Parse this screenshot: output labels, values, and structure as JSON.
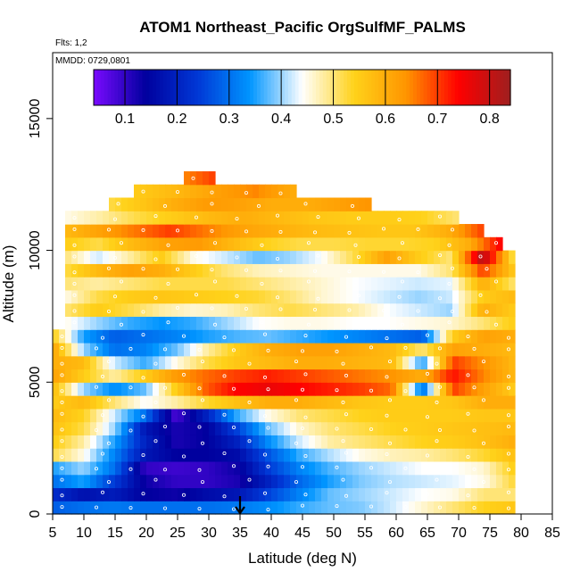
{
  "chart_data": {
    "type": "heatmap",
    "title": "ATOM1 Northeast_Pacific OrgSulfMF_PALMS",
    "flights_note": "Flts: 1,2",
    "date_note": "MMDD: 0729,0801",
    "xlabel": "Latitude (deg N)",
    "ylabel": "Altitude (m)",
    "xlim": [
      5,
      85
    ],
    "ylim": [
      0,
      17500
    ],
    "x_ticks": [
      5,
      10,
      15,
      20,
      25,
      30,
      35,
      40,
      45,
      50,
      55,
      60,
      65,
      70,
      75,
      80,
      85
    ],
    "y_ticks": [
      0,
      5000,
      10000,
      15000
    ],
    "colorbar": {
      "range": [
        0.04,
        0.84
      ],
      "ticks": [
        0.1,
        0.2,
        0.3,
        0.4,
        0.5,
        0.6,
        0.7,
        0.8
      ],
      "tick_labels": [
        "0.1",
        "0.2",
        "0.3",
        "0.4",
        "0.5",
        "0.6",
        "0.7",
        "0.8"
      ],
      "colors": [
        "#7a0aff",
        "#00009e",
        "#0038d6",
        "#0095ff",
        "#ffffff",
        "#ffd21a",
        "#ff9500",
        "#ff0000",
        "#9e1f1f"
      ]
    },
    "marker": {
      "latitude": 35,
      "description": "arrow at surface"
    },
    "altitude_bands": [
      {
        "alt": 250,
        "lat": [
          5,
          79
        ],
        "values": [
          0.28,
          0.3,
          0.31,
          0.3,
          0.3,
          0.3,
          0.31,
          0.33,
          0.36,
          0.38,
          0.39,
          0.42,
          0.46,
          0.5,
          0.54,
          0.56
        ]
      },
      {
        "alt": 750,
        "lat": [
          5,
          79
        ],
        "values": [
          0.22,
          0.17,
          0.19,
          0.14,
          0.13,
          0.16,
          0.18,
          0.25,
          0.32,
          0.38,
          0.4,
          0.42,
          0.44,
          0.45,
          0.5,
          0.5
        ]
      },
      {
        "alt": 1250,
        "lat": [
          5,
          79
        ],
        "values": [
          0.3,
          0.35,
          0.24,
          0.13,
          0.1,
          0.1,
          0.12,
          0.2,
          0.29,
          0.35,
          0.39,
          0.41,
          0.42,
          0.43,
          0.45,
          0.53
        ]
      },
      {
        "alt": 1750,
        "lat": [
          5,
          79
        ],
        "values": [
          0.35,
          0.4,
          0.3,
          0.1,
          0.09,
          0.1,
          0.13,
          0.24,
          0.32,
          0.37,
          0.4,
          0.42,
          0.44,
          0.44,
          0.46,
          0.55
        ]
      },
      {
        "alt": 2250,
        "lat": [
          5,
          79
        ],
        "values": [
          0.52,
          0.45,
          0.32,
          0.18,
          0.14,
          0.14,
          0.16,
          0.27,
          0.36,
          0.41,
          0.45,
          0.47,
          0.48,
          0.5,
          0.53,
          0.57
        ]
      },
      {
        "alt": 2750,
        "lat": [
          5,
          79
        ],
        "values": [
          0.55,
          0.48,
          0.35,
          0.2,
          0.12,
          0.14,
          0.2,
          0.33,
          0.42,
          0.48,
          0.5,
          0.52,
          0.54,
          0.55,
          0.57,
          0.6
        ]
      },
      {
        "alt": 3250,
        "lat": [
          5,
          79
        ],
        "values": [
          0.57,
          0.52,
          0.4,
          0.18,
          0.12,
          0.14,
          0.25,
          0.38,
          0.46,
          0.5,
          0.52,
          0.54,
          0.55,
          0.56,
          0.57,
          0.58
        ]
      },
      {
        "alt": 3750,
        "lat": [
          5,
          79
        ],
        "values": [
          0.58,
          0.54,
          0.42,
          0.3,
          0.08,
          0.2,
          0.36,
          0.45,
          0.5,
          0.52,
          0.54,
          0.55,
          0.55,
          0.55,
          0.56,
          0.56
        ]
      },
      {
        "alt": 4250,
        "lat": [
          5,
          79
        ],
        "values": [
          0.55,
          0.58,
          0.5,
          0.44,
          0.48,
          0.53,
          0.57,
          0.6,
          0.6,
          0.58,
          0.56,
          0.55,
          0.55,
          0.56,
          0.6,
          0.6
        ]
      },
      {
        "alt": 4750,
        "lat": [
          5,
          79
        ],
        "values": [
          0.58,
          0.4,
          0.33,
          0.38,
          0.55,
          0.68,
          0.74,
          0.76,
          0.74,
          0.72,
          0.7,
          0.67,
          0.3,
          0.7,
          0.62,
          0.55
        ]
      },
      {
        "alt": 5250,
        "lat": [
          5,
          79
        ],
        "values": [
          0.62,
          0.55,
          0.48,
          0.55,
          0.63,
          0.67,
          0.7,
          0.72,
          0.7,
          0.68,
          0.66,
          0.64,
          0.6,
          0.73,
          0.65,
          0.58
        ]
      },
      {
        "alt": 5750,
        "lat": [
          5,
          79
        ],
        "values": [
          0.6,
          0.58,
          0.42,
          0.36,
          0.45,
          0.52,
          0.56,
          0.58,
          0.6,
          0.6,
          0.59,
          0.58,
          0.35,
          0.7,
          0.64,
          0.58
        ]
      },
      {
        "alt": 6250,
        "lat": [
          5,
          79
        ],
        "values": [
          0.62,
          0.4,
          0.3,
          0.32,
          0.38,
          0.48,
          0.55,
          0.6,
          0.62,
          0.62,
          0.6,
          0.58,
          0.5,
          0.62,
          0.6,
          0.58
        ]
      },
      {
        "alt": 6750,
        "lat": [
          5,
          79
        ],
        "values": [
          0.55,
          0.35,
          0.28,
          0.3,
          0.32,
          0.35,
          0.37,
          0.38,
          0.36,
          0.34,
          0.32,
          0.3,
          0.28,
          0.55,
          0.62,
          0.6
        ]
      },
      {
        "alt": 7250,
        "lat": [
          7,
          79
        ],
        "values": [
          0.45,
          0.4,
          0.36,
          0.34,
          0.36,
          0.4,
          0.44,
          0.45,
          0.45,
          0.44,
          0.44,
          0.45,
          0.46,
          0.5,
          0.55
        ]
      },
      {
        "alt": 7750,
        "lat": [
          7,
          79
        ],
        "values": [
          0.5,
          0.55,
          0.52,
          0.48,
          0.46,
          0.47,
          0.5,
          0.52,
          0.5,
          0.48,
          0.44,
          0.42,
          0.4,
          0.6,
          0.55
        ]
      },
      {
        "alt": 8250,
        "lat": [
          7,
          79
        ],
        "values": [
          0.45,
          0.52,
          0.55,
          0.56,
          0.55,
          0.54,
          0.53,
          0.5,
          0.46,
          0.44,
          0.42,
          0.4,
          0.42,
          0.55,
          0.58
        ]
      },
      {
        "alt": 8750,
        "lat": [
          7,
          79
        ],
        "values": [
          0.5,
          0.48,
          0.5,
          0.52,
          0.52,
          0.52,
          0.5,
          0.48,
          0.46,
          0.44,
          0.43,
          0.42,
          0.43,
          0.6,
          0.5
        ]
      },
      {
        "alt": 9250,
        "lat": [
          7,
          79
        ],
        "values": [
          0.52,
          0.58,
          0.62,
          0.6,
          0.55,
          0.5,
          0.47,
          0.46,
          0.45,
          0.45,
          0.45,
          0.45,
          0.5,
          0.7,
          0.55
        ]
      },
      {
        "alt": 9750,
        "lat": [
          7,
          79
        ],
        "values": [
          0.5,
          0.42,
          0.48,
          0.55,
          0.45,
          0.42,
          0.38,
          0.4,
          0.44,
          0.52,
          0.62,
          0.55,
          0.5,
          0.82,
          0.5
        ]
      },
      {
        "alt": 10250,
        "lat": [
          7,
          77
        ],
        "values": [
          0.55,
          0.52,
          0.58,
          0.62,
          0.63,
          0.58,
          0.54,
          0.52,
          0.52,
          0.53,
          0.53,
          0.54,
          0.6,
          0.75
        ]
      },
      {
        "alt": 10750,
        "lat": [
          7,
          74
        ],
        "values": [
          0.58,
          0.62,
          0.66,
          0.7,
          0.66,
          0.62,
          0.6,
          0.58,
          0.57,
          0.56,
          0.56,
          0.6,
          0.7
        ]
      },
      {
        "alt": 11250,
        "lat": [
          7,
          70
        ],
        "values": [
          0.45,
          0.48,
          0.52,
          0.55,
          0.58,
          0.6,
          0.58,
          0.56,
          0.55,
          0.55,
          0.54,
          0.5
        ]
      },
      {
        "alt": 11750,
        "lat": [
          14,
          56
        ],
        "values": [
          0.52,
          0.56,
          0.6,
          0.63,
          0.62,
          0.6,
          0.6,
          0.62,
          0.64
        ]
      },
      {
        "alt": 12250,
        "lat": [
          18,
          44
        ],
        "values": [
          0.55,
          0.58,
          0.62,
          0.65,
          0.6
        ]
      },
      {
        "alt": 12750,
        "lat": [
          26,
          31
        ],
        "values": [
          0.65,
          0.7
        ]
      }
    ]
  }
}
